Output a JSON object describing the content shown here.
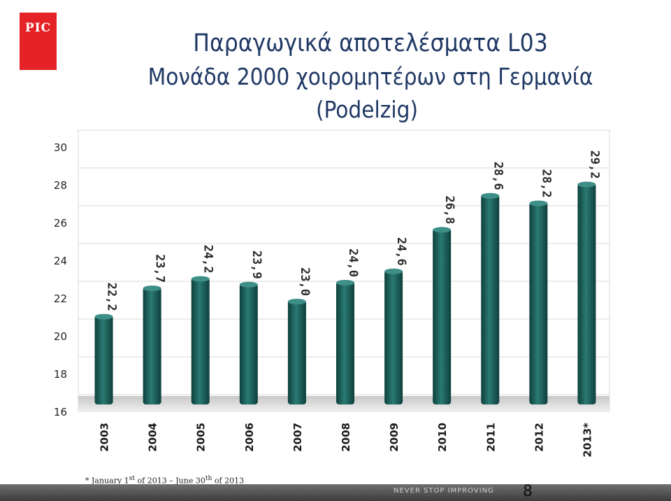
{
  "logo": {
    "text": "PIC"
  },
  "title": {
    "line1": "Παραγωγικά αποτελέσματα L03",
    "line2": "Μονάδα 2000 χοιρομητέρων στη Γερμανία",
    "line3": "(Podelzig)"
  },
  "chart_data": {
    "type": "bar",
    "categories": [
      "2003",
      "2004",
      "2005",
      "2006",
      "2007",
      "2008",
      "2009",
      "2010",
      "2011",
      "2012",
      "2013*"
    ],
    "values": [
      22.2,
      23.7,
      24.2,
      23.9,
      23.0,
      24.0,
      24.6,
      26.8,
      28.6,
      28.2,
      29.2
    ],
    "value_labels": [
      "22,2",
      "23,7",
      "24,2",
      "23,9",
      "23,0",
      "24,0",
      "24,6",
      "26,8",
      "28,6",
      "28,2",
      "29,2"
    ],
    "ylim": [
      16,
      30
    ],
    "yticks": [
      "16",
      "18",
      "20",
      "22",
      "24",
      "26",
      "28",
      "30"
    ],
    "grid": true,
    "colors": {
      "bar": "#1e6a64",
      "bar_dark": "#0e3f3b",
      "grid": "#d9d9d9"
    }
  },
  "footnote": {
    "prefix": "* January 1",
    "sup1": "st",
    "middle": " of 2013 – June 30",
    "sup2": "th",
    "suffix": " of 2013"
  },
  "footer": {
    "slogan": "NEVER STOP IMPROVING",
    "page": "8"
  }
}
